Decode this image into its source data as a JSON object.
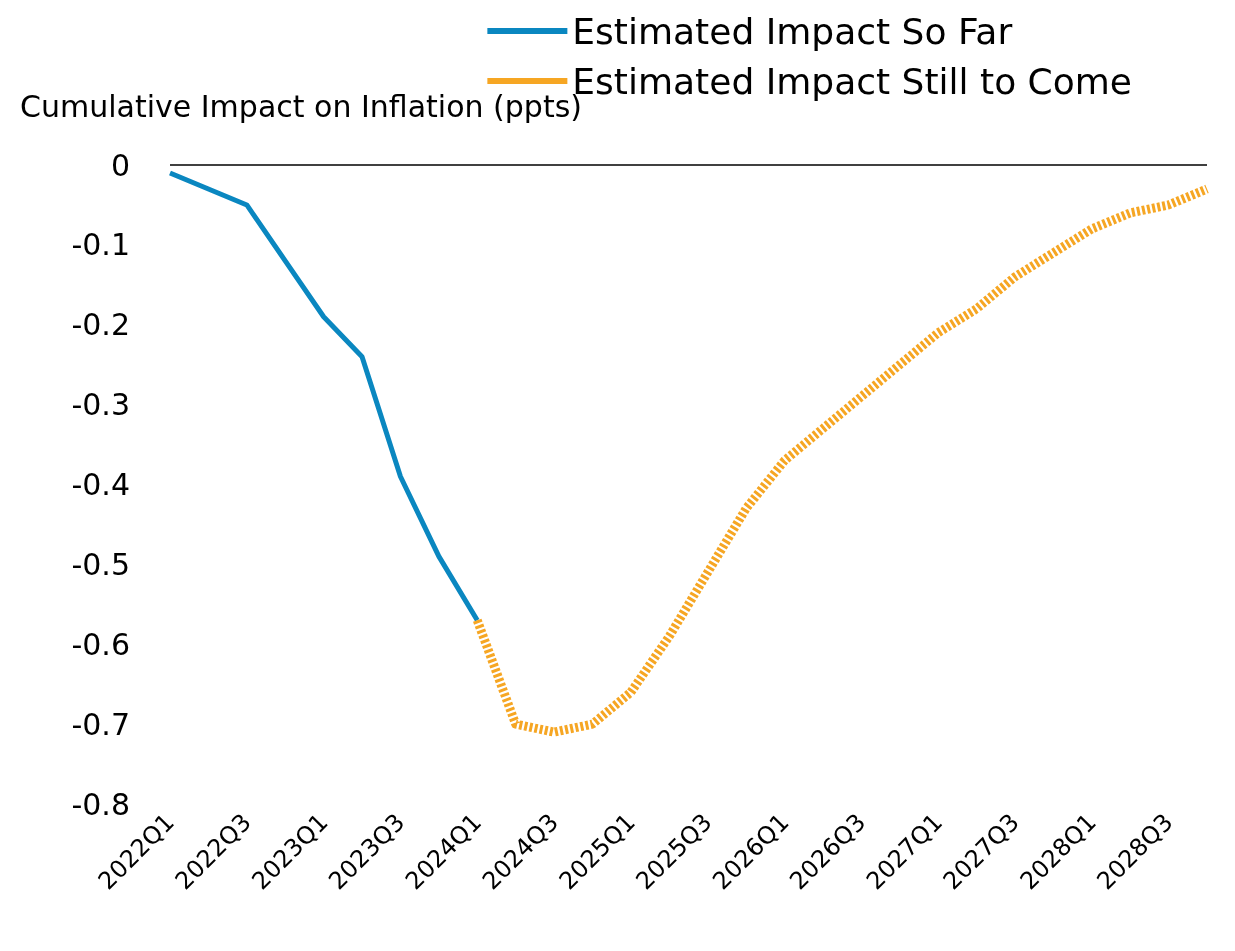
{
  "chart_data": {
    "type": "line",
    "ylabel": "Cumulative Impact on Inflation (ppts)",
    "categories": [
      "2022Q1",
      null,
      "2022Q3",
      null,
      "2023Q1",
      null,
      "2023Q3",
      null,
      "2024Q1",
      null,
      "2024Q3",
      null,
      "2025Q1",
      null,
      "2025Q3",
      null,
      "2026Q1",
      null,
      "2026Q3",
      null,
      "2027Q1",
      null,
      "2027Q3",
      null,
      "2028Q1",
      null,
      "2028Q3",
      null
    ],
    "series": [
      {
        "name": "Estimated Impact So Far",
        "color": "#0a87c0",
        "line_style": "solid",
        "values": [
          -0.01,
          -0.03,
          -0.05,
          -0.12,
          -0.19,
          -0.24,
          -0.39,
          -0.49,
          -0.57,
          null,
          null,
          null,
          null,
          null,
          null,
          null,
          null,
          null,
          null,
          null,
          null,
          null,
          null,
          null,
          null,
          null,
          null,
          null
        ]
      },
      {
        "name": "Estimated Impact Still to Come",
        "color": "#f6a623",
        "line_style": "dashed",
        "values": [
          null,
          null,
          null,
          null,
          null,
          null,
          null,
          null,
          -0.57,
          -0.7,
          -0.71,
          -0.7,
          -0.66,
          -0.59,
          -0.51,
          -0.43,
          -0.37,
          -0.33,
          -0.29,
          -0.25,
          -0.21,
          -0.18,
          -0.14,
          -0.11,
          -0.08,
          -0.06,
          -0.05,
          -0.03
        ]
      }
    ],
    "ylim": [
      -0.8,
      0
    ],
    "yticks": [
      0,
      -0.1,
      -0.2,
      -0.3,
      -0.4,
      -0.5,
      -0.6,
      -0.7,
      -0.8
    ],
    "ref_lines": [
      {
        "axis": "y",
        "value": 0
      }
    ],
    "grid": false,
    "legend": "top right",
    "marker": "none"
  }
}
